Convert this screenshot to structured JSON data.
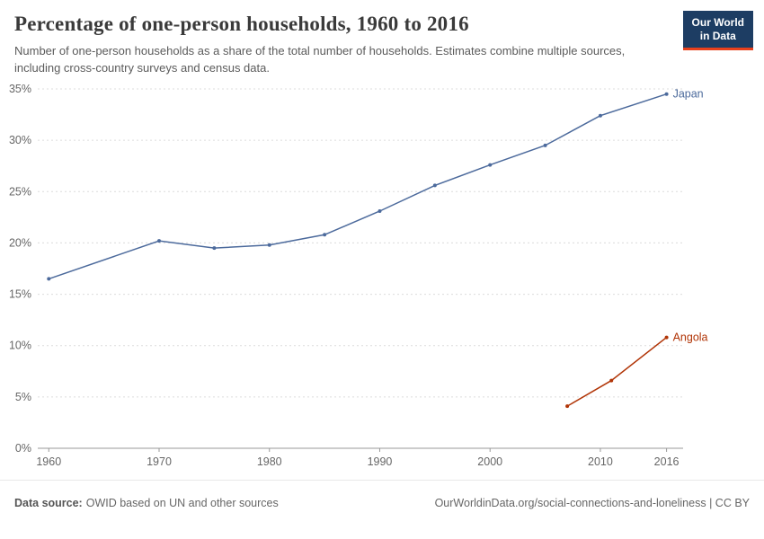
{
  "header": {
    "title": "Percentage of one-person households, 1960 to 2016",
    "subtitle": "Number of one-person households as a share of the total number of households. Estimates combine multiple sources, including cross-country surveys and census data.",
    "logo": {
      "line1": "Our World",
      "line2": "in Data"
    }
  },
  "footer": {
    "datasource_label": "Data source:",
    "datasource_text": "OWID based on UN and other sources",
    "url": "OurWorldinData.org/social-connections-and-loneliness",
    "separator": " | ",
    "license": "CC BY"
  },
  "colors": {
    "japan": "#4c6a9c",
    "angola": "#b13507",
    "gridline": "#dcdcdc",
    "axis": "#999999",
    "tick_text": "#666666",
    "logo_bg": "#1d3d63",
    "logo_accent": "#e8401c"
  },
  "chart_data": {
    "type": "line",
    "title": "Percentage of one-person households, 1960 to 2016",
    "xlabel": "",
    "ylabel": "",
    "y_format": "percent",
    "grid": "dashed-horizontal",
    "legend_position": "line-end-labels",
    "xlim": [
      1959,
      2017.5
    ],
    "ylim": [
      0,
      35
    ],
    "xticks": [
      1960,
      1970,
      1980,
      1990,
      2000,
      2010,
      2016
    ],
    "yticks": [
      0,
      5,
      10,
      15,
      20,
      25,
      30,
      35
    ],
    "series": [
      {
        "name": "Japan",
        "color": "#4c6a9c",
        "points": [
          [
            1960,
            16.5
          ],
          [
            1970,
            20.2
          ],
          [
            1975,
            19.5
          ],
          [
            1980,
            19.8
          ],
          [
            1985,
            20.8
          ],
          [
            1990,
            23.1
          ],
          [
            1995,
            25.6
          ],
          [
            2000,
            27.6
          ],
          [
            2005,
            29.5
          ],
          [
            2010,
            32.4
          ],
          [
            2016,
            34.5
          ]
        ]
      },
      {
        "name": "Angola",
        "color": "#b13507",
        "points": [
          [
            2007,
            4.1
          ],
          [
            2011,
            6.6
          ],
          [
            2016,
            10.8
          ]
        ]
      }
    ]
  }
}
